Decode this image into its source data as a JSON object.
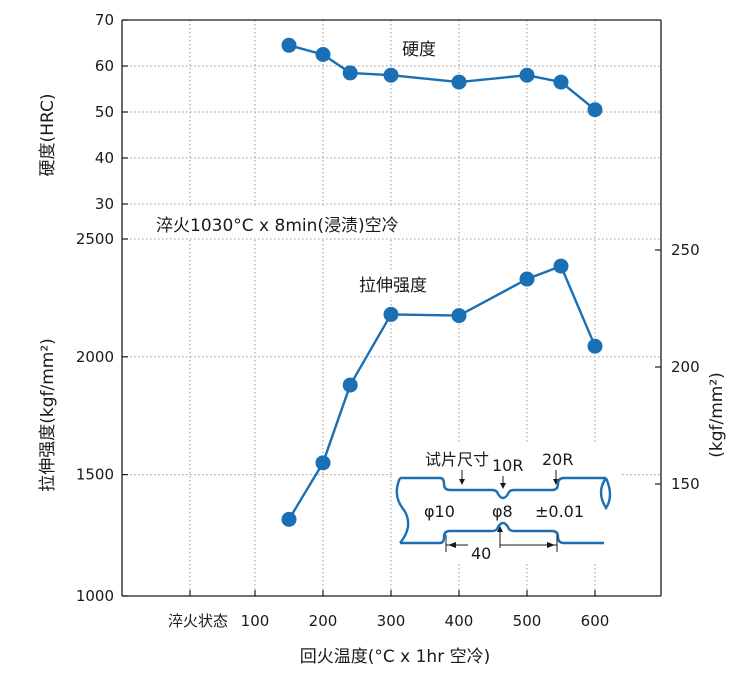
{
  "chart_data": {
    "type": "line",
    "xlabel": "回火温度(°C x 1hr 空冷)",
    "x_tick_labels": [
      "淬火状态",
      "100",
      "200",
      "300",
      "400",
      "500",
      "600"
    ],
    "condition_note": "淬火1030°C x 8min(浸渍)空冷",
    "hardness": {
      "ylabel": "硬度(HRC)",
      "ylim": [
        30,
        70
      ],
      "ticks": [
        30,
        40,
        50,
        60,
        70
      ],
      "series_label": "硬度",
      "x": [
        150,
        200,
        240,
        300,
        400,
        500,
        550,
        600
      ],
      "y": [
        64.5,
        62.5,
        58.5,
        58,
        56.5,
        58,
        56.5,
        50.5
      ]
    },
    "tensile": {
      "ylabel": "拉伸强度(kgf/mm²)",
      "ylim": [
        1000,
        2500
      ],
      "ticks": [
        1000,
        1500,
        2000,
        2500
      ],
      "right_ylabel": "(kgf/mm²)",
      "right_ticks": [
        150,
        200,
        250
      ],
      "series_label": "拉伸强度",
      "x": [
        150,
        200,
        240,
        300,
        400,
        500,
        550,
        600
      ],
      "y": [
        1310,
        1550,
        1880,
        2180,
        2175,
        2330,
        2385,
        2045
      ]
    },
    "specimen": {
      "title": "试片尺寸",
      "notch_radius": "10R",
      "shoulder_radius": "20R",
      "dia_body": "φ10",
      "dia_notch": "φ8",
      "tolerance": "±0.01",
      "length": "40"
    },
    "colors": {
      "series": "#1a6fb5",
      "axis": "#1a1a1a"
    },
    "grid": true
  }
}
